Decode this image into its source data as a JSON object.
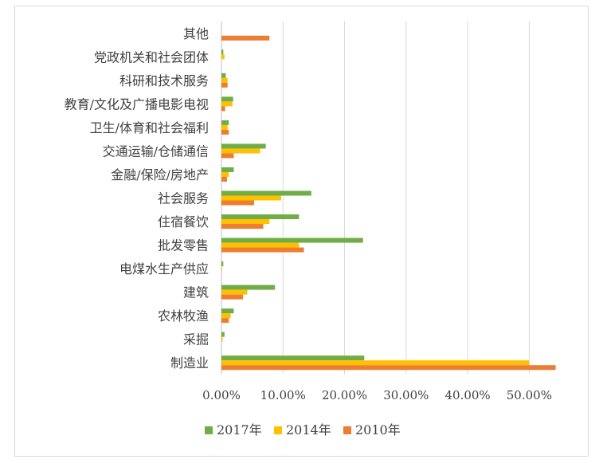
{
  "chart_data": {
    "type": "bar",
    "orientation": "horizontal",
    "categories": [
      "其他",
      "党政机关和社会团体",
      "科研和技术服务",
      "教育/文化及广播电影电视",
      "卫生/体育和社会福利",
      "交通运输/仓储通信",
      "金融/保险/房地产",
      "社会服务",
      "住宿餐饮",
      "批发零售",
      "电煤水生产供应",
      "建筑",
      "农林牧渔",
      "采掘",
      "制造业"
    ],
    "series": [
      {
        "name": "2017年",
        "color": "#70AD47",
        "values": [
          0.0,
          0.3,
          0.7,
          1.9,
          1.2,
          7.2,
          2.0,
          14.6,
          12.6,
          23.0,
          0.3,
          8.7,
          2.0,
          0.5,
          23.2
        ]
      },
      {
        "name": "2014年",
        "color": "#FFC000",
        "values": [
          0.0,
          0.5,
          1.0,
          1.8,
          1.0,
          6.3,
          1.2,
          9.7,
          7.8,
          12.6,
          0.1,
          4.2,
          1.5,
          0.2,
          50.0
        ]
      },
      {
        "name": "2010年",
        "color": "#ED7D31",
        "values": [
          7.8,
          0.0,
          1.0,
          0.6,
          1.2,
          2.0,
          0.9,
          5.3,
          6.8,
          13.4,
          0.0,
          3.5,
          1.2,
          0.0,
          54.3
        ]
      }
    ],
    "xlim": [
      0,
      55
    ],
    "x_ticks": [
      "0.00%",
      "10.00%",
      "20.00%",
      "30.00%",
      "40.00%",
      "50.00%"
    ],
    "grid": true,
    "legend_position": "bottom"
  }
}
